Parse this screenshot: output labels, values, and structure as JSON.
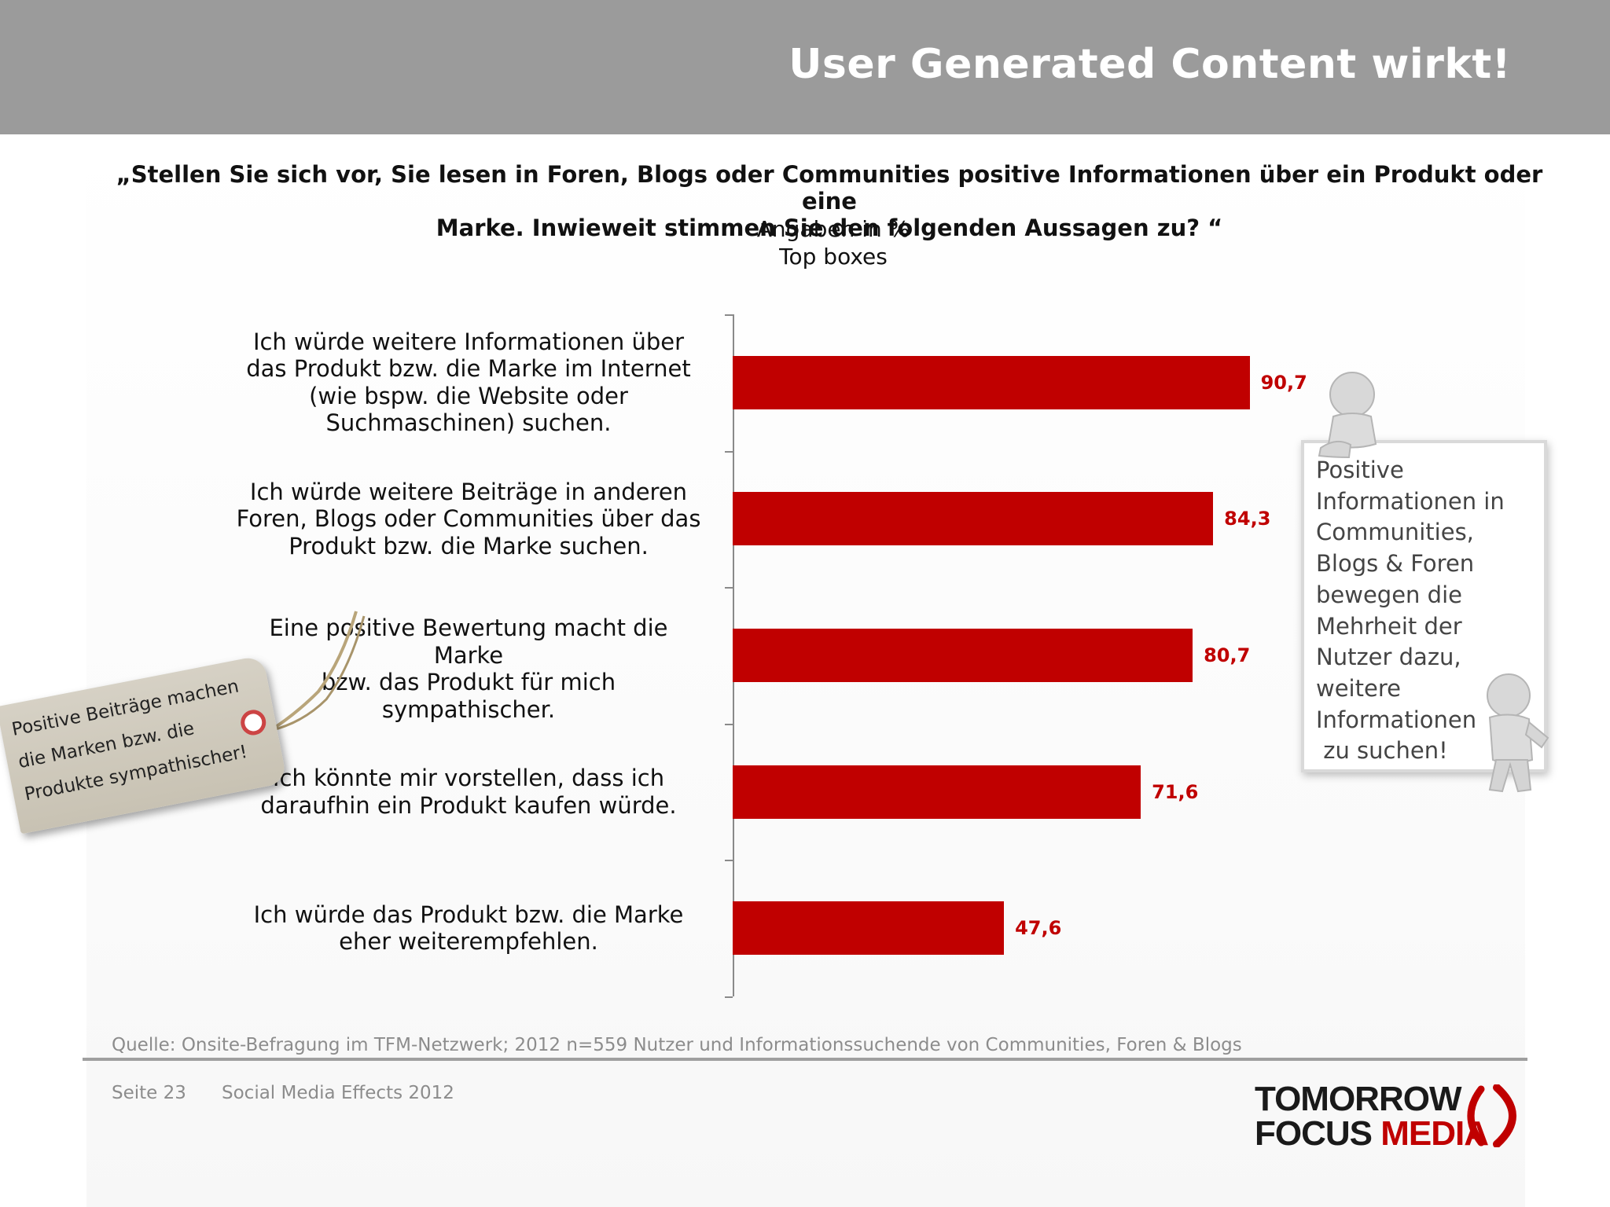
{
  "header": {
    "title": "User Generated Content wirkt!"
  },
  "question": {
    "line1": "„Stellen Sie sich vor, Sie lesen in Foren, Blogs oder Communities positive Informationen über ein Produkt oder eine",
    "line2": "Marke. Inwieweit stimmen Sie den folgenden Aussagen zu? “",
    "unit": "Angaben in %",
    "basis": "Top boxes"
  },
  "chart_data": {
    "type": "bar",
    "orientation": "horizontal",
    "categories": [
      "Ich würde weitere Informationen über das Produkt bzw. die Marke im Internet (wie bspw. die Website oder Suchmaschinen) suchen.",
      "Ich würde weitere Beiträge in anderen Foren, Blogs oder Communities über das Produkt bzw. die Marke suchen.",
      "Eine positive Bewertung macht die Marke bzw. das Produkt für mich sympathischer.",
      "Ich könnte mir vorstellen, dass ich daraufhin ein Produkt kaufen würde.",
      "Ich würde das Produkt bzw. die Marke eher weiterempfehlen."
    ],
    "category_lines": [
      [
        "Ich würde weitere Informationen über",
        "das Produkt bzw. die Marke im Internet",
        "(wie bspw. die Website oder",
        "Suchmaschinen) suchen."
      ],
      [
        "Ich würde weitere Beiträge in anderen",
        "Foren, Blogs oder Communities über das",
        "Produkt bzw. die Marke suchen."
      ],
      [
        "Eine positive Bewertung macht die Marke",
        "bzw. das Produkt für mich",
        "sympathischer."
      ],
      [
        "Ich könnte mir vorstellen, dass ich",
        "daraufhin ein Produkt kaufen würde."
      ],
      [
        "Ich würde das Produkt bzw. die Marke",
        "eher weiterempfehlen."
      ]
    ],
    "values": [
      90.7,
      84.3,
      80.7,
      71.6,
      47.6
    ],
    "value_labels": [
      "90,7",
      "84,3",
      "80,7",
      "71,6",
      "47,6"
    ],
    "xlim": [
      0,
      100
    ],
    "bar_color": "#c00000",
    "grid": false
  },
  "callout": {
    "lines": [
      "Positive",
      "Informationen in",
      "Communities,",
      "Blogs & Foren",
      "bewegen die",
      "Mehrheit der",
      "Nutzer dazu,",
      "weitere",
      "Informationen",
      " zu suchen!"
    ]
  },
  "tag": {
    "lines": [
      "Positive Beiträge machen",
      "die Marken bzw. die",
      "Produkte sympathischer!"
    ]
  },
  "source": "Quelle: Onsite-Befragung im TFM-Netzwerk; 2012 n=559 Nutzer und Informationssuchende von Communities, Foren & Blogs",
  "footer": {
    "page": "Seite 23",
    "title": "Social Media Effects 2012"
  },
  "logo": {
    "line1": "TOMORROW",
    "line2a": "FOCUS ",
    "line2b": "MEDIA"
  },
  "colors": {
    "accent": "#c00000",
    "header": "#9b9b9b"
  }
}
